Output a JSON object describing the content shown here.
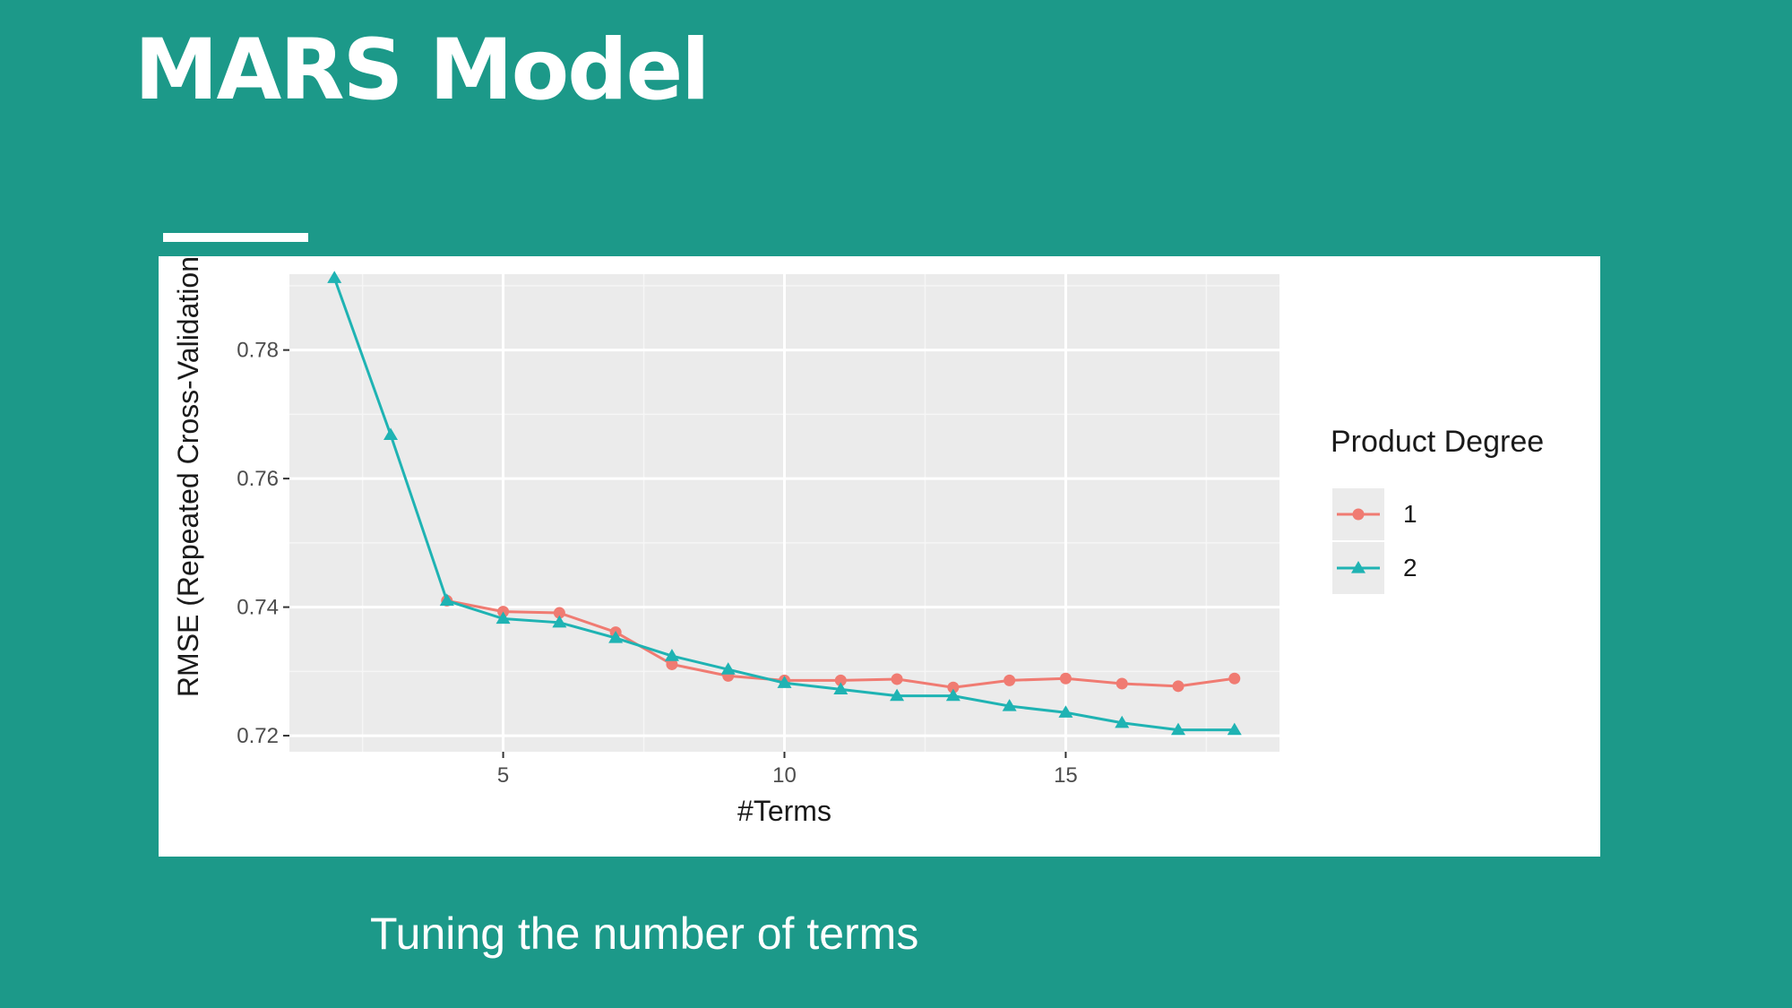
{
  "slide": {
    "title": "MARS Model",
    "caption": "Tuning the number of terms"
  },
  "chart_data": {
    "type": "line",
    "xlabel": "#Terms",
    "ylabel": "RMSE (Repeated Cross-Validation",
    "xlim": [
      1.2,
      18.8
    ],
    "ylim": [
      0.7175,
      0.7918
    ],
    "x_ticks": [
      5,
      10,
      15
    ],
    "y_ticks": [
      0.72,
      0.74,
      0.76,
      0.78
    ],
    "x_tick_labels": [
      "5",
      "10",
      "15"
    ],
    "y_tick_labels": [
      "0.72",
      "0.74",
      "0.76",
      "0.78"
    ],
    "grid": true,
    "legend": {
      "title": "Product Degree",
      "position": "right"
    },
    "series": [
      {
        "name": "1",
        "color": "#f07b72",
        "marker": "circle",
        "x": [
          4,
          5,
          6,
          7,
          8,
          9,
          10,
          11,
          12,
          13,
          14,
          15,
          16,
          17,
          18
        ],
        "y": [
          0.741,
          0.7393,
          0.7391,
          0.7361,
          0.7311,
          0.7293,
          0.7286,
          0.7286,
          0.7288,
          0.7275,
          0.7286,
          0.7289,
          0.7281,
          0.7277,
          0.7289
        ]
      },
      {
        "name": "2",
        "color": "#1fb3b3",
        "marker": "triangle",
        "x": [
          2,
          3,
          4,
          5,
          6,
          7,
          8,
          9,
          10,
          11,
          12,
          13,
          14,
          15,
          16,
          17,
          18
        ],
        "y": [
          0.7912,
          0.7668,
          0.741,
          0.7382,
          0.7376,
          0.7352,
          0.7324,
          0.7303,
          0.7282,
          0.7272,
          0.7262,
          0.7262,
          0.7246,
          0.7236,
          0.722,
          0.7209,
          0.7209
        ]
      }
    ]
  }
}
